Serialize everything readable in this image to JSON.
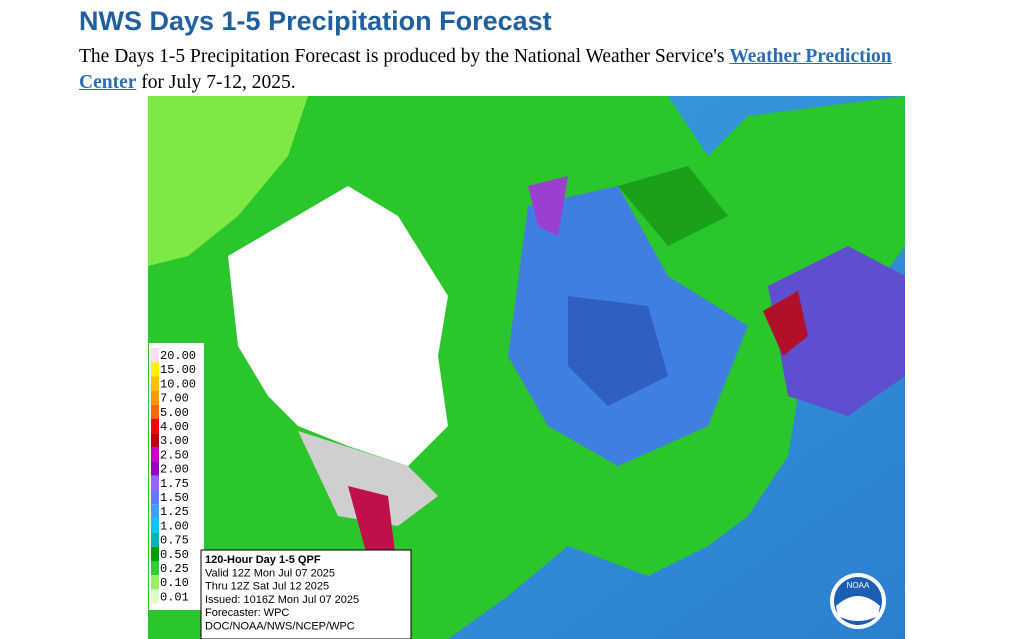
{
  "header": {
    "title": "NWS Days 1-5 Precipitation Forecast"
  },
  "intro": {
    "text_before": "The Days 1-5 Precipitation Forecast is produced by the National Weather Service's",
    "link": "Weather Prediction Center",
    "text_after": "for July 7-12, 2025."
  },
  "map": {
    "legend": [
      "20.00",
      "15.00",
      "10.00",
      "7.00",
      "5.00",
      "4.00",
      "3.00",
      "2.50",
      "2.00",
      "1.75",
      "1.50",
      "1.25",
      "1.00",
      "0.75",
      "0.50",
      "0.25",
      "0.10",
      "0.01"
    ],
    "info": [
      "120-Hour Day 1-5 QPF",
      "Valid 12Z Mon Jul 07 2025",
      "Thru 12Z Sat Jul 12 2025",
      "Issued: 1016Z Mon Jul 07 2025",
      "Forecaster: WPC",
      "DOC/NOAA/NWS/NCEP/WPC"
    ],
    "logo": "NOAA"
  }
}
